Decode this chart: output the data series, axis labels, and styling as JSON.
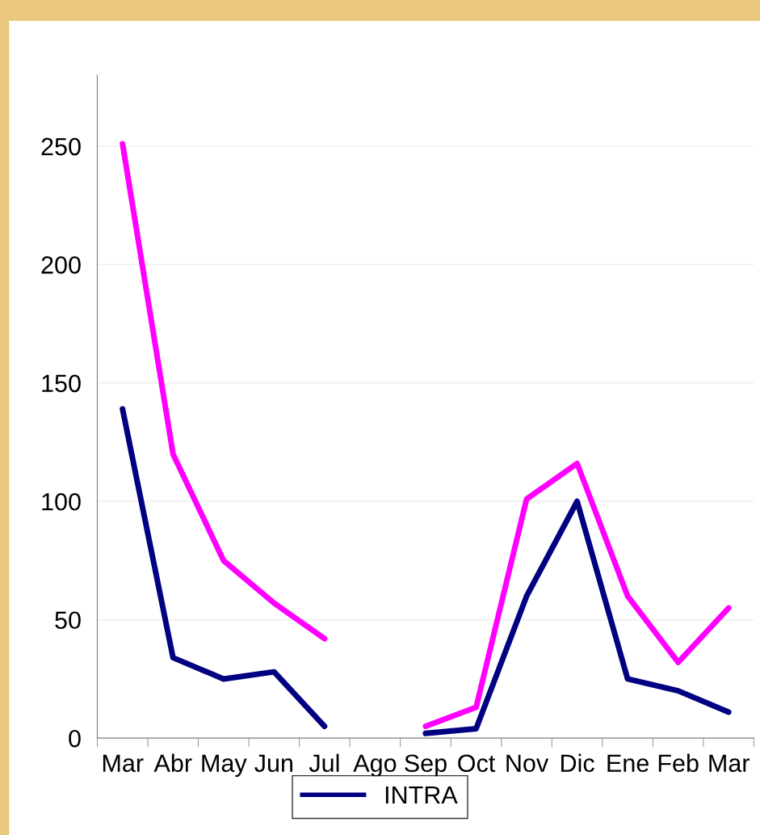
{
  "chart_data": {
    "type": "line",
    "categories": [
      "Mar",
      "Abr",
      "May",
      "Jun",
      "Jul",
      "Ago",
      "Sep",
      "Oct",
      "Nov",
      "Dic",
      "Ene",
      "Feb",
      "Mar"
    ],
    "series": [
      {
        "color": "#ff00ff",
        "values": [
          251,
          120,
          75,
          57,
          42,
          null,
          5,
          13,
          101,
          116,
          60,
          32,
          55
        ]
      },
      {
        "name": "INTRA",
        "color": "#000080",
        "values": [
          139,
          34,
          25,
          28,
          5,
          null,
          2,
          4,
          60,
          100,
          25,
          20,
          11
        ]
      }
    ],
    "ylim": [
      0,
      280
    ],
    "yticks": [
      0,
      50,
      100,
      150,
      200,
      250
    ],
    "grid": "y",
    "legend": "bottom",
    "marker": "none",
    "line_style": "solid"
  }
}
